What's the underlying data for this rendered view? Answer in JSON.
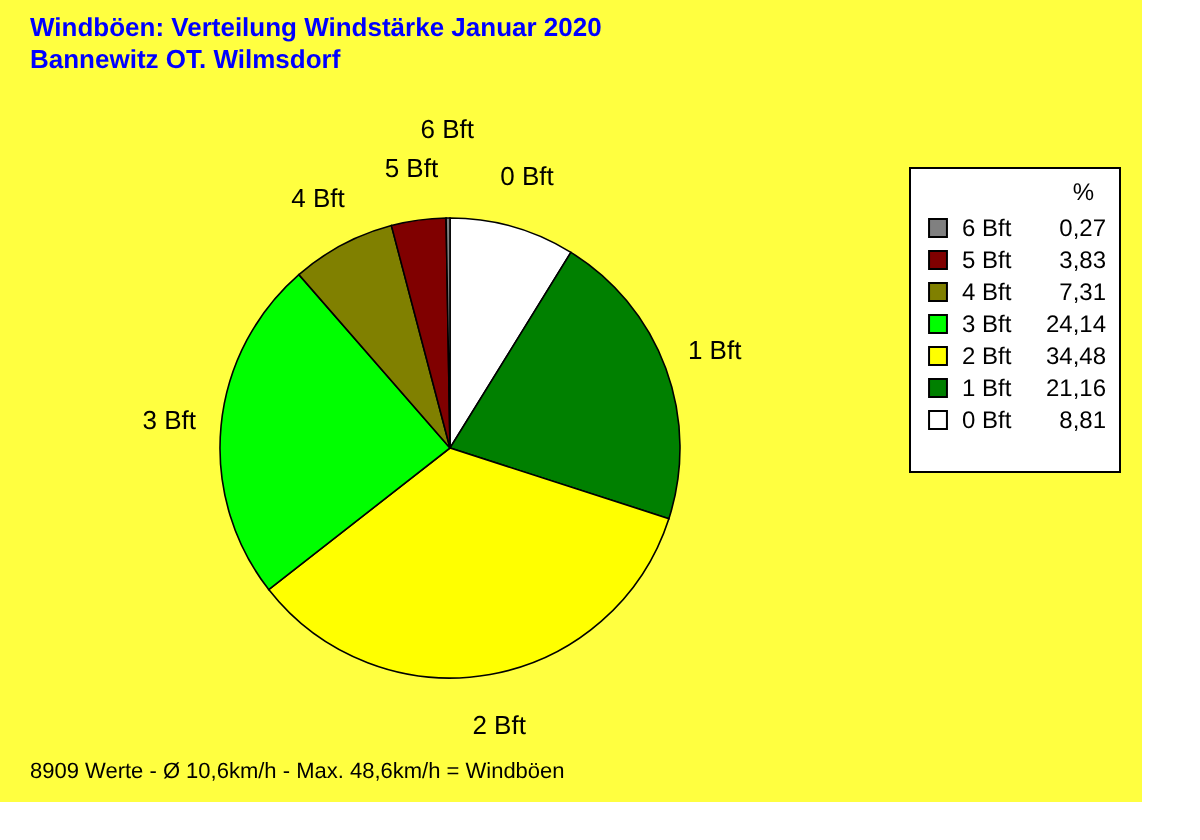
{
  "chart_data": {
    "type": "pie",
    "title": "Windböen: Verteilung Windstärke  Januar 2020",
    "subtitle": "Bannewitz OT. Wilmsdorf",
    "categories": [
      "0 Bft",
      "1 Bft",
      "2 Bft",
      "3 Bft",
      "4 Bft",
      "5 Bft",
      "6 Bft"
    ],
    "values": [
      8.81,
      21.16,
      34.48,
      24.14,
      7.31,
      3.83,
      0.27
    ],
    "value_labels": [
      "8,81",
      "21,16",
      "34,48",
      "24,14",
      "7,31",
      "3,83",
      "0,27"
    ],
    "colors": [
      "#ffffff",
      "#008000",
      "#ffff00",
      "#00ff00",
      "#808000",
      "#800000",
      "#808080"
    ],
    "legend_title": "%",
    "legend": "right",
    "annotations": [
      "8909 Werte   -   Ø 10,6km/h  -  Max. 48,6km/h = Windböen"
    ]
  }
}
